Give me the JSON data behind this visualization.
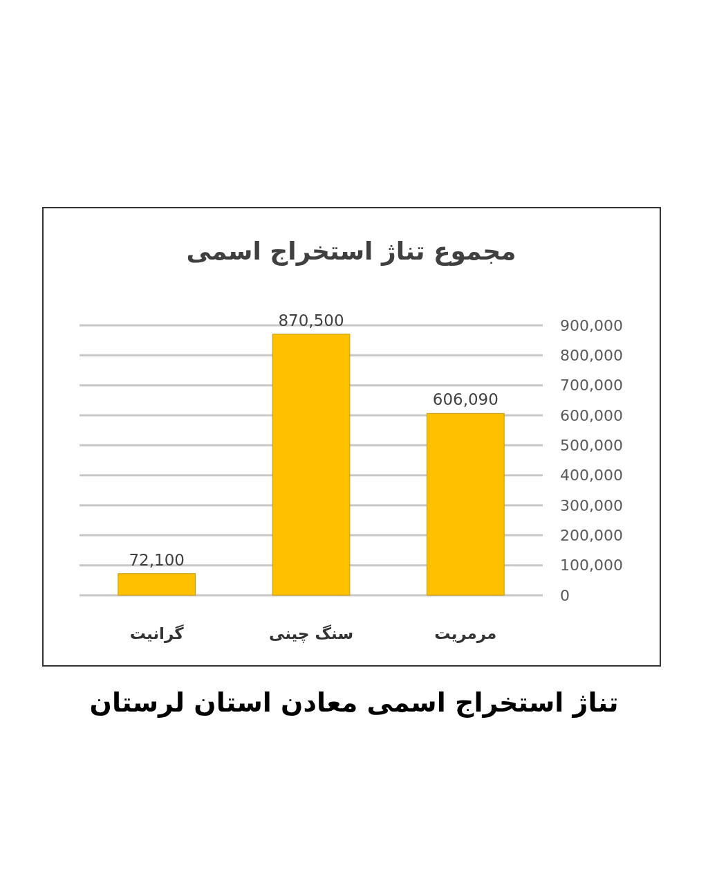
{
  "chart_data": {
    "type": "bar",
    "title": "مجموع تناژ استخراج اسمی",
    "annotations": [
      "تناژ استخراج اسمی معادن استان لرستان"
    ],
    "categories": [
      "گرانیت",
      "سنگ چینی",
      "مرمریت"
    ],
    "values": [
      72100,
      870500,
      606090
    ],
    "value_labels": [
      "72,100",
      "870,500",
      "606,090"
    ],
    "color": "#ffc000",
    "ylim": [
      0,
      900000
    ],
    "yticks": [
      0,
      {
        "value": 100000,
        "label": "100,000"
      },
      {
        "value": 200000,
        "label": "200,000"
      },
      {
        "value": 300000,
        "label": "300,000"
      },
      {
        "value": 400000,
        "label": "400,000"
      },
      {
        "value": 500000,
        "label": "500,000"
      },
      {
        "value": 600000,
        "label": "600,000"
      },
      {
        "value": 700000,
        "label": "700,000"
      },
      {
        "value": 800000,
        "label": "800,000"
      },
      {
        "value": 900000,
        "label": "900,000"
      }
    ],
    "grid": "y"
  }
}
